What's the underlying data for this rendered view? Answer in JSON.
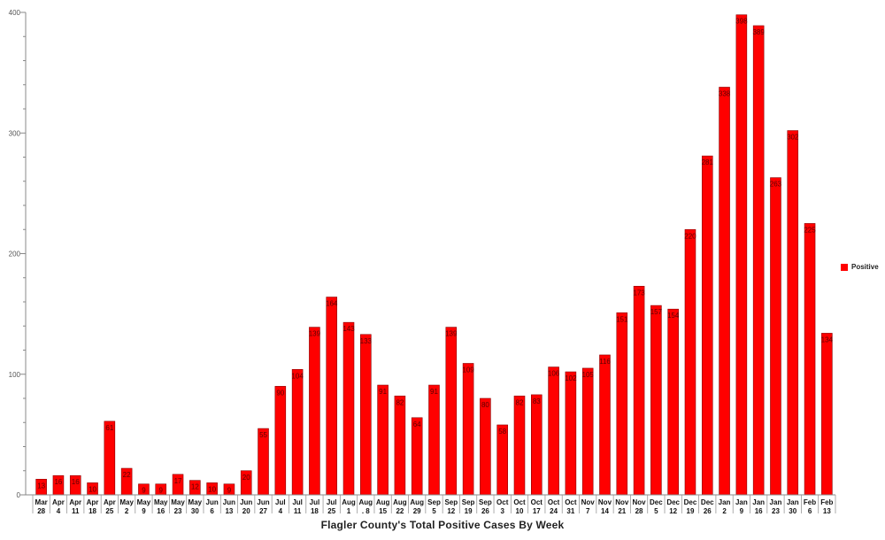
{
  "chart_data": {
    "type": "bar",
    "title": "Flagler County's Total Positive Cases By Week",
    "xlabel": "",
    "ylabel": "",
    "ylim": [
      0,
      400
    ],
    "yticks": [
      0,
      100,
      200,
      300,
      400
    ],
    "grid": false,
    "legend_position": "right",
    "categories": [
      [
        "Mar",
        "28"
      ],
      [
        "Apr",
        "4"
      ],
      [
        "Apr",
        "11"
      ],
      [
        "Apr",
        "18"
      ],
      [
        "Apr",
        "25"
      ],
      [
        "May",
        "2"
      ],
      [
        "May",
        "9"
      ],
      [
        "May",
        "16"
      ],
      [
        "May",
        "23"
      ],
      [
        "May",
        "30"
      ],
      [
        "Jun",
        "6"
      ],
      [
        "Jun",
        "13"
      ],
      [
        "Jun",
        "20"
      ],
      [
        "Jun",
        "27"
      ],
      [
        "Jul",
        "4"
      ],
      [
        "Jul",
        "11"
      ],
      [
        "Jul",
        "18"
      ],
      [
        "Jul",
        "25"
      ],
      [
        "Aug",
        "1"
      ],
      [
        "Aug",
        ". 8"
      ],
      [
        "Aug",
        "15"
      ],
      [
        "Aug",
        "22"
      ],
      [
        "Aug",
        "29"
      ],
      [
        "Sep",
        "5"
      ],
      [
        "Sep",
        "12"
      ],
      [
        "Sep",
        "19"
      ],
      [
        "Sep",
        "26"
      ],
      [
        "Oct",
        "3"
      ],
      [
        "Oct",
        "10"
      ],
      [
        "Oct",
        "17"
      ],
      [
        "Oct",
        "24"
      ],
      [
        "Oct",
        "31"
      ],
      [
        "Nov",
        "7"
      ],
      [
        "Nov",
        "14"
      ],
      [
        "Nov",
        "21"
      ],
      [
        "Nov",
        "28"
      ],
      [
        "Dec",
        "5"
      ],
      [
        "Dec",
        "12"
      ],
      [
        "Dec",
        "19"
      ],
      [
        "Dec",
        "26"
      ],
      [
        "Jan",
        "2"
      ],
      [
        "Jan",
        "9"
      ],
      [
        "Jan",
        "16"
      ],
      [
        "Jan",
        "23"
      ],
      [
        "Jan",
        "30"
      ],
      [
        "Feb",
        "6"
      ],
      [
        "Feb",
        "13"
      ]
    ],
    "series": [
      {
        "name": "Positive",
        "color": "#ff0000",
        "values": [
          13,
          16,
          16,
          10,
          61,
          22,
          9,
          9,
          17,
          12,
          10,
          9,
          20,
          55,
          90,
          104,
          139,
          164,
          143,
          133,
          91,
          82,
          64,
          91,
          139,
          109,
          80,
          58,
          82,
          83,
          106,
          102,
          105,
          116,
          151,
          173,
          157,
          154,
          220,
          281,
          338,
          398,
          389,
          263,
          302,
          225,
          134
        ]
      }
    ]
  }
}
